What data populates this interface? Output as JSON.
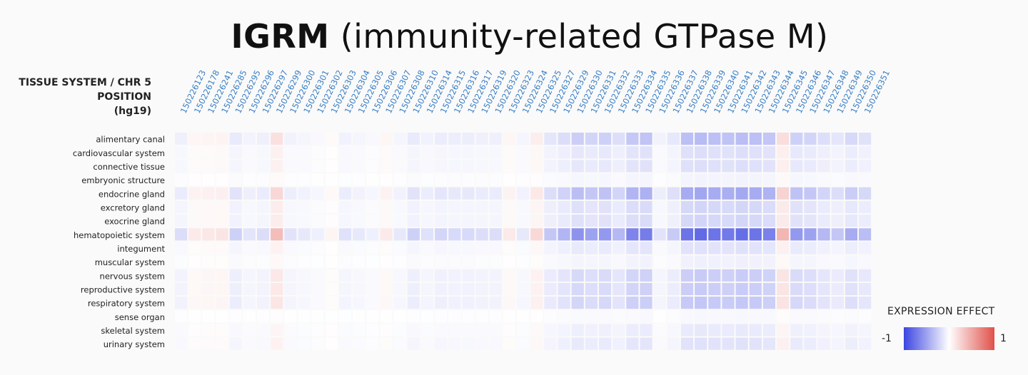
{
  "title_bold": "IGRM",
  "title_rest": "(immunity-related GTPase M)",
  "row_header": [
    "TISSUE SYSTEM / CHR 5",
    "POSITION",
    "(hg19)"
  ],
  "legend": {
    "title": "EXPRESSION EFFECT",
    "min_label": "-1",
    "max_label": "1",
    "neg_color": "#3b45e0",
    "mid_color": "#ffffff",
    "pos_color": "#e0504a"
  },
  "chart_data": {
    "type": "heatmap",
    "title": "IGRM (immunity-related GTPase M)",
    "xlabel": "CHR 5 POSITION (hg19)",
    "ylabel": "TISSUE SYSTEM",
    "zlim": [
      -1,
      1
    ],
    "x": [
      "150226123",
      "150226178",
      "150226241",
      "150226285",
      "150226295",
      "150226296",
      "150226297",
      "150226299",
      "150226300",
      "150226301",
      "150226302",
      "150226303",
      "150226304",
      "150226305",
      "150226306",
      "150226307",
      "150226308",
      "150226310",
      "150226314",
      "150226315",
      "150226316",
      "150226317",
      "150226319",
      "150226320",
      "150226323",
      "150226324",
      "150226325",
      "150226327",
      "150226329",
      "150226330",
      "150226331",
      "150226332",
      "150226333",
      "150226334",
      "150226335",
      "150226336",
      "150226337",
      "150226338",
      "150226339",
      "150226340",
      "150226341",
      "150226342",
      "150226343",
      "150226344",
      "150226345",
      "150226346",
      "150226347",
      "150226348",
      "150226349",
      "150226350",
      "150226351"
    ],
    "y": [
      "alimentary canal",
      "cardiovascular system",
      "connective tissue",
      "embryonic structure",
      "endocrine gland",
      "excretory gland",
      "exocrine gland",
      "hematopoietic system",
      "integument",
      "muscular system",
      "nervous system",
      "reproductive system",
      "respiratory system",
      "sense organ",
      "skeletal system",
      "urinary system"
    ],
    "column_effect": [
      -0.18,
      0.12,
      0.14,
      0.15,
      -0.25,
      -0.14,
      -0.18,
      0.38,
      -0.15,
      -0.12,
      -0.08,
      0.06,
      -0.16,
      -0.12,
      -0.08,
      0.12,
      -0.12,
      -0.25,
      -0.16,
      -0.22,
      -0.2,
      -0.2,
      -0.18,
      -0.18,
      0.12,
      -0.12,
      0.22,
      -0.3,
      -0.4,
      -0.58,
      -0.5,
      -0.55,
      -0.38,
      -0.66,
      -0.7,
      -0.15,
      -0.28,
      -0.75,
      -0.8,
      -0.75,
      -0.72,
      -0.78,
      -0.75,
      -0.68,
      0.42,
      -0.55,
      -0.5,
      -0.38,
      -0.3,
      -0.45,
      -0.35
    ],
    "row_scale": [
      0.45,
      0.22,
      0.22,
      0.08,
      0.6,
      0.28,
      0.28,
      1.0,
      0.2,
      0.1,
      0.35,
      0.35,
      0.38,
      0.05,
      0.15,
      0.2
    ],
    "note": "cell value = column_effect[j] * row_scale[i]"
  }
}
